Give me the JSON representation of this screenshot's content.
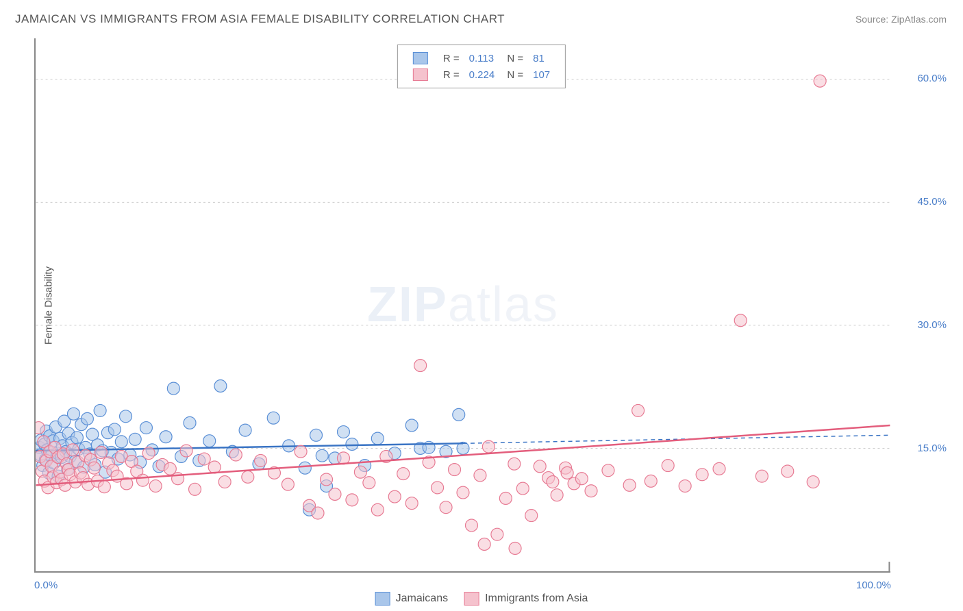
{
  "title": "JAMAICAN VS IMMIGRANTS FROM ASIA FEMALE DISABILITY CORRELATION CHART",
  "source": "Source: ZipAtlas.com",
  "y_axis_label": "Female Disability",
  "watermark_bold": "ZIP",
  "watermark_light": "atlas",
  "chart": {
    "type": "scatter",
    "xlim": [
      0,
      100
    ],
    "ylim": [
      0,
      65
    ],
    "x_ticks": [
      {
        "v": 0,
        "label": "0.0%"
      },
      {
        "v": 100,
        "label": "100.0%"
      }
    ],
    "y_ticks": [
      {
        "v": 15,
        "label": "15.0%"
      },
      {
        "v": 30,
        "label": "30.0%"
      },
      {
        "v": 45,
        "label": "45.0%"
      },
      {
        "v": 60,
        "label": "60.0%"
      }
    ],
    "grid_color": "#cccccc",
    "background_color": "#ffffff",
    "point_radius": 9,
    "point_opacity": 0.55,
    "series": [
      {
        "name": "Jamaicans",
        "color_fill": "#a9c6ea",
        "color_stroke": "#5a8fd6",
        "R": "0.113",
        "N": "81",
        "trend": {
          "x1": 0,
          "y1": 14.7,
          "x2": 50,
          "y2": 15.6,
          "x2_ext": 100,
          "y2_ext": 16.6,
          "color": "#3a74c4",
          "width": 2.5
        },
        "points": [
          [
            0.4,
            15.1
          ],
          [
            0.5,
            14.2
          ],
          [
            0.6,
            16.0
          ],
          [
            0.8,
            12.9
          ],
          [
            1.0,
            15.5
          ],
          [
            1.1,
            13.6
          ],
          [
            1.2,
            17.1
          ],
          [
            1.3,
            14.8
          ],
          [
            1.5,
            12.0
          ],
          [
            1.6,
            16.5
          ],
          [
            1.8,
            14.1
          ],
          [
            2.0,
            15.9
          ],
          [
            2.1,
            13.2
          ],
          [
            2.3,
            17.6
          ],
          [
            2.5,
            14.4
          ],
          [
            2.6,
            11.6
          ],
          [
            2.8,
            16.2
          ],
          [
            3.0,
            13.9
          ],
          [
            3.1,
            15.3
          ],
          [
            3.3,
            18.3
          ],
          [
            3.5,
            14.6
          ],
          [
            3.7,
            12.4
          ],
          [
            3.8,
            16.8
          ],
          [
            4.0,
            14.0
          ],
          [
            4.2,
            15.7
          ],
          [
            4.4,
            19.2
          ],
          [
            4.6,
            13.4
          ],
          [
            4.8,
            16.3
          ],
          [
            5.0,
            14.9
          ],
          [
            5.3,
            17.9
          ],
          [
            5.6,
            12.7
          ],
          [
            5.8,
            15.1
          ],
          [
            6.0,
            18.6
          ],
          [
            6.3,
            14.3
          ],
          [
            6.6,
            16.7
          ],
          [
            6.9,
            13.0
          ],
          [
            7.2,
            15.4
          ],
          [
            7.5,
            19.6
          ],
          [
            7.8,
            14.7
          ],
          [
            8.1,
            12.1
          ],
          [
            8.4,
            16.9
          ],
          [
            8.8,
            14.5
          ],
          [
            9.2,
            17.3
          ],
          [
            9.6,
            13.7
          ],
          [
            10.0,
            15.8
          ],
          [
            10.5,
            18.9
          ],
          [
            11.0,
            14.2
          ],
          [
            11.6,
            16.1
          ],
          [
            12.2,
            13.3
          ],
          [
            12.9,
            17.5
          ],
          [
            13.6,
            14.8
          ],
          [
            14.4,
            12.8
          ],
          [
            15.2,
            16.4
          ],
          [
            16.1,
            22.3
          ],
          [
            17.0,
            14.0
          ],
          [
            18.0,
            18.1
          ],
          [
            19.1,
            13.5
          ],
          [
            20.3,
            15.9
          ],
          [
            21.6,
            22.6
          ],
          [
            23.0,
            14.6
          ],
          [
            24.5,
            17.2
          ],
          [
            26.1,
            13.1
          ],
          [
            27.8,
            18.7
          ],
          [
            29.6,
            15.3
          ],
          [
            31.5,
            12.6
          ],
          [
            32.0,
            7.5
          ],
          [
            32.8,
            16.6
          ],
          [
            33.5,
            14.1
          ],
          [
            34.0,
            10.4
          ],
          [
            35.0,
            13.8
          ],
          [
            36.0,
            17.0
          ],
          [
            37.0,
            15.5
          ],
          [
            38.5,
            12.9
          ],
          [
            40.0,
            16.2
          ],
          [
            42.0,
            14.4
          ],
          [
            44.0,
            17.8
          ],
          [
            45.0,
            15.0
          ],
          [
            46.0,
            15.1
          ],
          [
            48.0,
            14.6
          ],
          [
            49.5,
            19.1
          ],
          [
            50.0,
            15.0
          ]
        ]
      },
      {
        "name": "Immigrants from Asia",
        "color_fill": "#f5c2cd",
        "color_stroke": "#e77a93",
        "R": "0.224",
        "N": "107",
        "trend": {
          "x1": 0,
          "y1": 10.5,
          "x2": 100,
          "y2": 17.8,
          "color": "#e35d7c",
          "width": 2.5
        },
        "points": [
          [
            0.3,
            17.5
          ],
          [
            0.5,
            14.0
          ],
          [
            0.7,
            12.2
          ],
          [
            0.9,
            15.8
          ],
          [
            1.0,
            11.0
          ],
          [
            1.2,
            13.5
          ],
          [
            1.4,
            10.2
          ],
          [
            1.6,
            14.6
          ],
          [
            1.8,
            12.8
          ],
          [
            2.0,
            11.5
          ],
          [
            2.2,
            15.1
          ],
          [
            2.4,
            10.8
          ],
          [
            2.6,
            13.9
          ],
          [
            2.8,
            12.1
          ],
          [
            3.0,
            11.2
          ],
          [
            3.2,
            14.3
          ],
          [
            3.4,
            10.5
          ],
          [
            3.6,
            13.1
          ],
          [
            3.8,
            12.4
          ],
          [
            4.0,
            11.8
          ],
          [
            4.3,
            14.8
          ],
          [
            4.6,
            10.9
          ],
          [
            4.9,
            13.3
          ],
          [
            5.2,
            12.0
          ],
          [
            5.5,
            11.4
          ],
          [
            5.8,
            14.1
          ],
          [
            6.1,
            10.6
          ],
          [
            6.4,
            13.6
          ],
          [
            6.8,
            12.6
          ],
          [
            7.2,
            11.0
          ],
          [
            7.6,
            14.5
          ],
          [
            8.0,
            10.3
          ],
          [
            8.5,
            13.2
          ],
          [
            9.0,
            12.3
          ],
          [
            9.5,
            11.6
          ],
          [
            10.0,
            14.0
          ],
          [
            10.6,
            10.7
          ],
          [
            11.2,
            13.4
          ],
          [
            11.8,
            12.2
          ],
          [
            12.5,
            11.1
          ],
          [
            13.2,
            14.4
          ],
          [
            14.0,
            10.4
          ],
          [
            14.8,
            13.0
          ],
          [
            15.7,
            12.5
          ],
          [
            16.6,
            11.3
          ],
          [
            17.6,
            14.7
          ],
          [
            18.6,
            10.0
          ],
          [
            19.7,
            13.7
          ],
          [
            20.9,
            12.7
          ],
          [
            22.1,
            10.9
          ],
          [
            23.4,
            14.2
          ],
          [
            24.8,
            11.5
          ],
          [
            26.3,
            13.5
          ],
          [
            27.9,
            12.0
          ],
          [
            29.5,
            10.6
          ],
          [
            31.0,
            14.6
          ],
          [
            32.0,
            8.0
          ],
          [
            33.0,
            7.1
          ],
          [
            34.0,
            11.2
          ],
          [
            35.0,
            9.4
          ],
          [
            36.0,
            13.8
          ],
          [
            37.0,
            8.7
          ],
          [
            38.0,
            12.1
          ],
          [
            39.0,
            10.8
          ],
          [
            40.0,
            7.5
          ],
          [
            41.0,
            14.0
          ],
          [
            42.0,
            9.1
          ],
          [
            43.0,
            11.9
          ],
          [
            44.0,
            8.3
          ],
          [
            45.0,
            25.1
          ],
          [
            46.0,
            13.3
          ],
          [
            47.0,
            10.2
          ],
          [
            48.0,
            7.8
          ],
          [
            49.0,
            12.4
          ],
          [
            50.0,
            9.6
          ],
          [
            51.0,
            5.6
          ],
          [
            52.0,
            11.7
          ],
          [
            52.5,
            3.3
          ],
          [
            53.0,
            15.2
          ],
          [
            54.0,
            4.5
          ],
          [
            55.0,
            8.9
          ],
          [
            56.0,
            13.1
          ],
          [
            57.0,
            10.1
          ],
          [
            58.0,
            6.8
          ],
          [
            59.0,
            12.8
          ],
          [
            60.0,
            11.4
          ],
          [
            61.0,
            9.3
          ],
          [
            62.0,
            12.6
          ],
          [
            63.0,
            10.7
          ],
          [
            56.1,
            2.8
          ],
          [
            60.5,
            10.9
          ],
          [
            62.2,
            12.0
          ],
          [
            63.9,
            11.3
          ],
          [
            65.0,
            9.8
          ],
          [
            67.0,
            12.3
          ],
          [
            69.5,
            10.5
          ],
          [
            70.5,
            19.6
          ],
          [
            72.0,
            11.0
          ],
          [
            74.0,
            12.9
          ],
          [
            76.0,
            10.4
          ],
          [
            78.0,
            11.8
          ],
          [
            80.0,
            12.5
          ],
          [
            82.5,
            30.6
          ],
          [
            85.0,
            11.6
          ],
          [
            88.0,
            12.2
          ],
          [
            91.0,
            10.9
          ],
          [
            91.8,
            59.8
          ]
        ]
      }
    ]
  }
}
